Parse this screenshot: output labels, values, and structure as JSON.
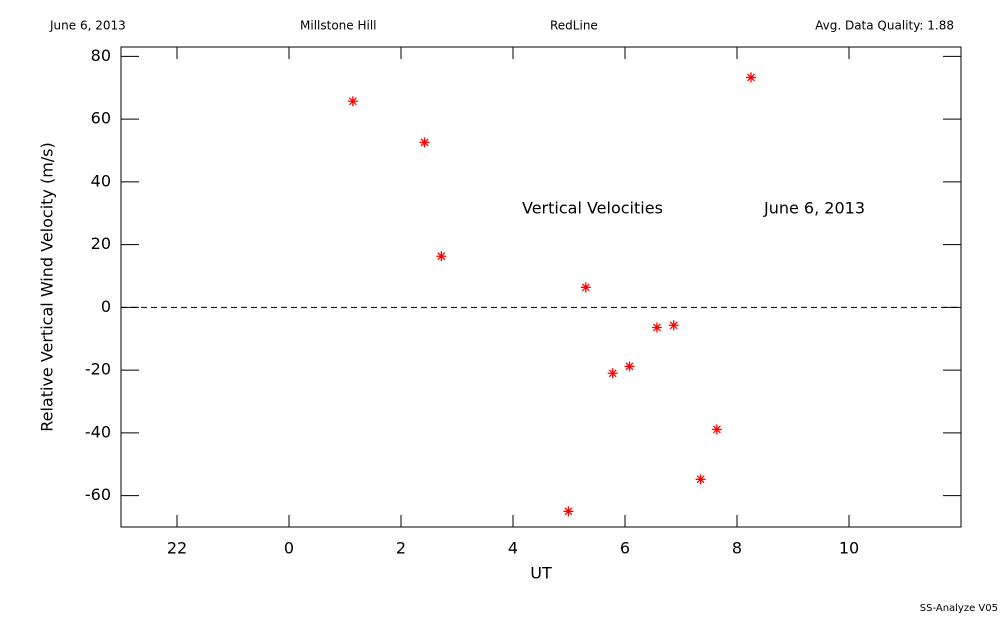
{
  "chart_data": {
    "type": "scatter",
    "header": [
      "June 6, 2013",
      "Millstone Hill",
      "RedLine",
      "Avg. Data Quality: 1.88"
    ],
    "annotations": [
      "Vertical Velocities",
      "June 6, 2013"
    ],
    "footer": "SS-Analyze V05",
    "x_label": "UT",
    "y_label": "Relative Vertical Wind Velocity (m/s)",
    "xlim": [
      -3,
      12
    ],
    "ylim": [
      -70,
      83
    ],
    "xticks": [
      {
        "value": -2,
        "label": "22"
      },
      0,
      2,
      4,
      6,
      8,
      10
    ],
    "yticks": [
      -60,
      -40,
      -20,
      0,
      20,
      40,
      60,
      80
    ],
    "reference_line": 0,
    "color": "#ff0000",
    "x": [
      1.14,
      2.42,
      2.72,
      4.99,
      5.3,
      5.78,
      6.08,
      6.57,
      6.87,
      7.35,
      7.64,
      8.25
    ],
    "values": [
      65.7,
      52.6,
      16.3,
      -65.0,
      6.4,
      -21.0,
      -18.8,
      -6.4,
      -5.7,
      -54.8,
      -38.9,
      73.3
    ]
  }
}
